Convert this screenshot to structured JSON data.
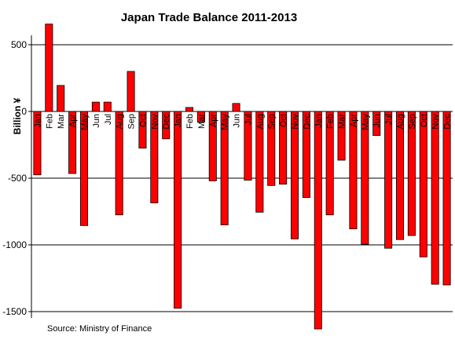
{
  "chart_data": {
    "type": "bar",
    "title": "Japan  Trade Balance 2011-2013",
    "xlabel": "",
    "ylabel": "Billion ¥",
    "ylim": [
      -1500,
      500
    ],
    "yticks": [
      500,
      0,
      -500,
      -1000,
      -1500
    ],
    "grid": true,
    "legend": "none",
    "source": "Source: Ministry of Finance",
    "bar_color": "#ff0000",
    "bar_stroke": "#000000",
    "grid_color": "#000000",
    "categories": [
      "Jan",
      "Feb",
      "Mar",
      "Apr",
      "May",
      "Jun",
      "Jul",
      "Aug",
      "Sep",
      "Oct",
      "Nov",
      "Dec",
      "Jan",
      "Feb",
      "Mar",
      "Apr",
      "May",
      "Jun",
      "Jul",
      "Aug",
      "Sep",
      "Oct",
      "Nov",
      "Dec",
      "Jan",
      "Feb",
      "Mar",
      "Apr",
      "May",
      "Jun",
      "Jul",
      "Aug",
      "Sep",
      "Oct",
      "Nov",
      "Dec"
    ],
    "values": [
      -475,
      655,
      195,
      -465,
      -855,
      70,
      70,
      -775,
      300,
      -275,
      -685,
      -205,
      -1475,
      30,
      -80,
      -520,
      -850,
      60,
      -515,
      -755,
      -555,
      -545,
      -955,
      -645,
      -1630,
      -775,
      -365,
      -880,
      -995,
      -180,
      -1025,
      -960,
      -930,
      -1090,
      -1295,
      -1300
    ]
  }
}
